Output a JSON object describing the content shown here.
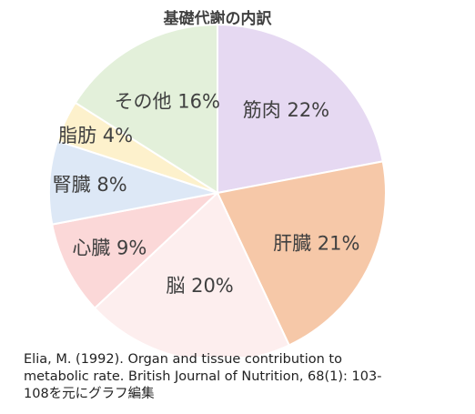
{
  "chart_data": {
    "type": "pie",
    "title": "基礎代謝の内訳",
    "slices": [
      {
        "name": "筋肉",
        "value": 22,
        "label": "筋肉 22%",
        "color": "#e6d9f2"
      },
      {
        "name": "肝臓",
        "value": 21,
        "label": "肝臓 21%",
        "color": "#f6c8a8"
      },
      {
        "name": "脳",
        "value": 20,
        "label": "脳 20%",
        "color": "#fdeeee"
      },
      {
        "name": "心臓",
        "value": 9,
        "label": "心臓 9%",
        "color": "#fbd8d8"
      },
      {
        "name": "腎臓",
        "value": 8,
        "label": "腎臓 8%",
        "color": "#dde8f6"
      },
      {
        "name": "脂肪",
        "value": 4,
        "label": "脂肪 4%",
        "color": "#fdf1cc"
      },
      {
        "name": "その他",
        "value": 16,
        "label": "その他 16%",
        "color": "#e3f0da"
      }
    ],
    "start": "12 o'clock",
    "direction": "clockwise",
    "legend": "none (labels inside slices)"
  },
  "source": {
    "lines": [
      "Elia, M. (1992). Organ and tissue contribution to",
      "metabolic rate. British Journal of Nutrition, 68(1): 103-",
      "108を元にグラフ編集"
    ]
  }
}
